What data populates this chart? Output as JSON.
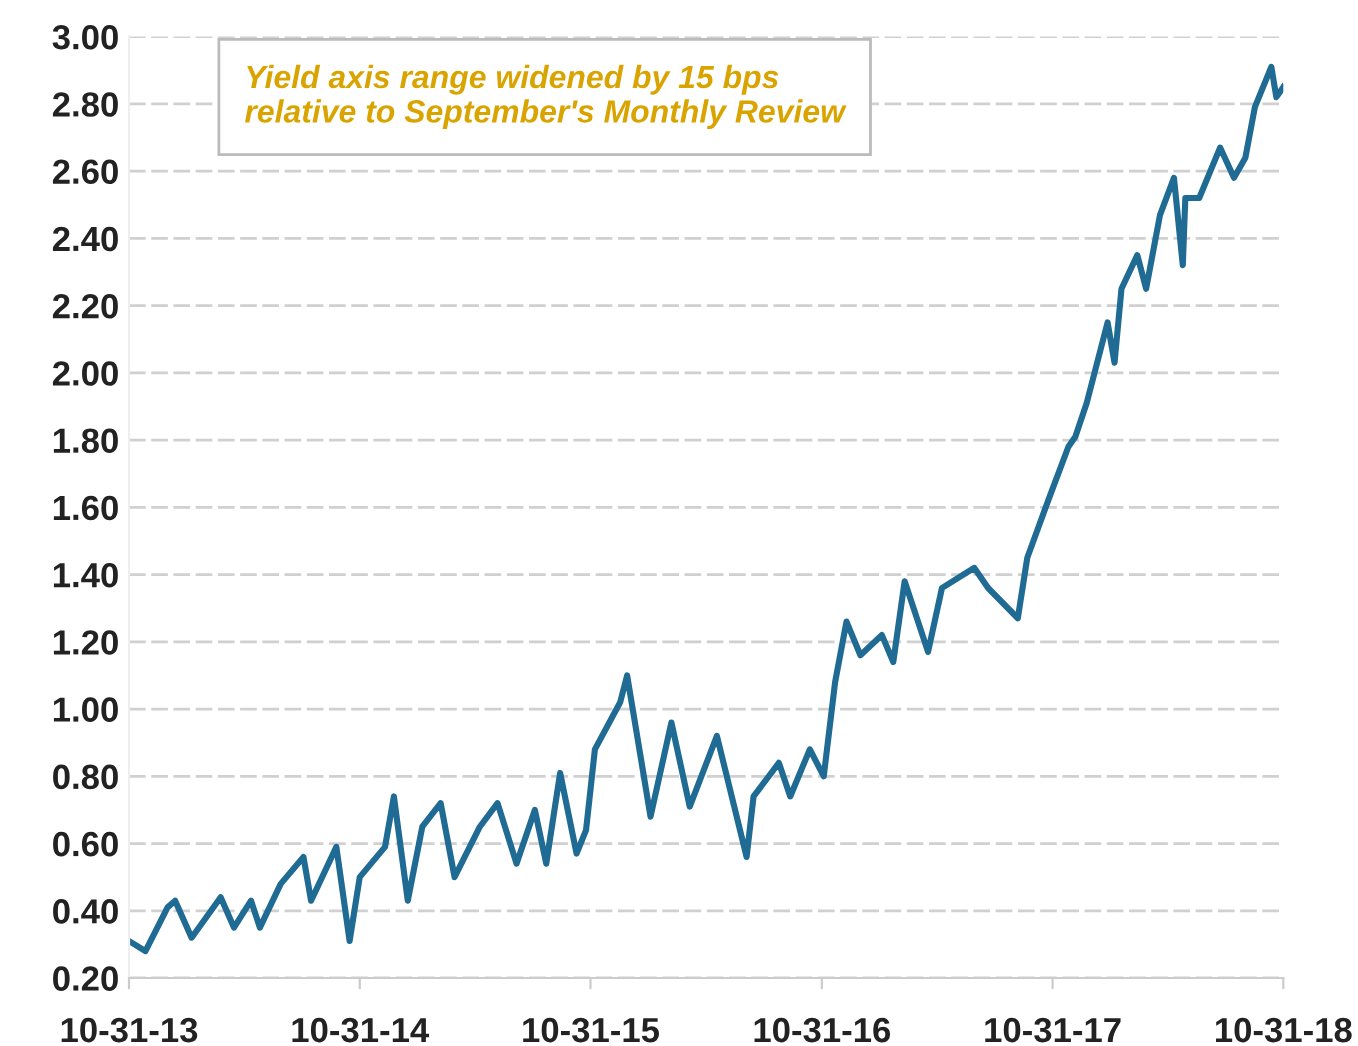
{
  "chart_data": {
    "type": "line",
    "annotations": [
      "Yield axis range widened by 15 bps relative to September's Monthly Review"
    ],
    "x": [
      "2013-10-31",
      "2013-11-26",
      "2013-12-31",
      "2014-01-12",
      "2014-02-07",
      "2014-03-25",
      "2014-04-15",
      "2014-05-12",
      "2014-05-26",
      "2014-06-28",
      "2014-08-03",
      "2014-08-15",
      "2014-09-24",
      "2014-10-15",
      "2014-10-31",
      "2014-12-10",
      "2014-12-24",
      "2015-01-15",
      "2015-02-07",
      "2015-03-08",
      "2015-03-30",
      "2015-05-09",
      "2015-06-06",
      "2015-07-06",
      "2015-08-04",
      "2015-08-22",
      "2015-09-13",
      "2015-10-09",
      "2015-10-24",
      "2015-11-07",
      "2015-12-17",
      "2015-12-28",
      "2016-02-03",
      "2016-03-07",
      "2016-04-05",
      "2016-05-18",
      "2016-07-04",
      "2016-07-15",
      "2016-08-24",
      "2016-09-11",
      "2016-10-12",
      "2016-11-03",
      "2016-11-21",
      "2016-12-09",
      "2016-12-31",
      "2017-02-03",
      "2017-02-21",
      "2017-03-11",
      "2017-04-17",
      "2017-05-09",
      "2017-06-29",
      "2017-07-21",
      "2017-09-06",
      "2017-09-21",
      "2017-10-24",
      "2017-11-25",
      "2017-12-06",
      "2017-12-24",
      "2018-01-26",
      "2018-02-06",
      "2018-02-17",
      "2018-03-14",
      "2018-03-28",
      "2018-04-19",
      "2018-05-11",
      "2018-05-25",
      "2018-05-29",
      "2018-06-20",
      "2018-07-23",
      "2018-08-14",
      "2018-09-01",
      "2018-09-16",
      "2018-10-12",
      "2018-10-20",
      "2018-10-31"
    ],
    "series": [
      {
        "color": "#1f6b94",
        "values": [
          0.31,
          0.28,
          0.41,
          0.43,
          0.32,
          0.44,
          0.35,
          0.43,
          0.35,
          0.48,
          0.56,
          0.43,
          0.59,
          0.31,
          0.5,
          0.59,
          0.74,
          0.43,
          0.65,
          0.72,
          0.5,
          0.65,
          0.72,
          0.54,
          0.7,
          0.54,
          0.81,
          0.57,
          0.64,
          0.88,
          1.02,
          1.1,
          0.68,
          0.96,
          0.71,
          0.92,
          0.56,
          0.74,
          0.84,
          0.74,
          0.88,
          0.8,
          1.08,
          1.26,
          1.16,
          1.22,
          1.14,
          1.38,
          1.17,
          1.36,
          1.42,
          1.36,
          1.27,
          1.45,
          1.62,
          1.78,
          1.81,
          1.91,
          2.15,
          2.03,
          2.25,
          2.35,
          2.25,
          2.47,
          2.58,
          2.32,
          2.52,
          2.52,
          2.67,
          2.58,
          2.64,
          2.79,
          2.91,
          2.82,
          2.85
        ]
      }
    ],
    "xlim": [
      "2013-10-31",
      "2018-10-31"
    ],
    "xticks": [
      {
        "value": "2013-10-31",
        "label": "10-31-13"
      },
      {
        "value": "2014-10-31",
        "label": "10-31-14"
      },
      {
        "value": "2015-10-31",
        "label": "10-31-15"
      },
      {
        "value": "2016-10-31",
        "label": "10-31-16"
      },
      {
        "value": "2017-10-31",
        "label": "10-31-17"
      },
      {
        "value": "2018-10-31",
        "label": "10-31-18"
      }
    ],
    "ylim": [
      0.2,
      3.0
    ],
    "yticks": [
      {
        "value": 0.2,
        "label": "0.20"
      },
      {
        "value": 0.4,
        "label": "0.40"
      },
      {
        "value": 0.6,
        "label": "0.60"
      },
      {
        "value": 0.8,
        "label": "0.80"
      },
      {
        "value": 1.0,
        "label": "1.00"
      },
      {
        "value": 1.2,
        "label": "1.20"
      },
      {
        "value": 1.4,
        "label": "1.40"
      },
      {
        "value": 1.6,
        "label": "1.60"
      },
      {
        "value": 1.8,
        "label": "1.80"
      },
      {
        "value": 2.0,
        "label": "2.00"
      },
      {
        "value": 2.2,
        "label": "2.20"
      },
      {
        "value": 2.4,
        "label": "2.40"
      },
      {
        "value": 2.6,
        "label": "2.60"
      },
      {
        "value": 2.8,
        "label": "2.80"
      },
      {
        "value": 3.0,
        "label": "3.00"
      }
    ],
    "grid": "y",
    "marker": "none",
    "line_style": "solid"
  }
}
